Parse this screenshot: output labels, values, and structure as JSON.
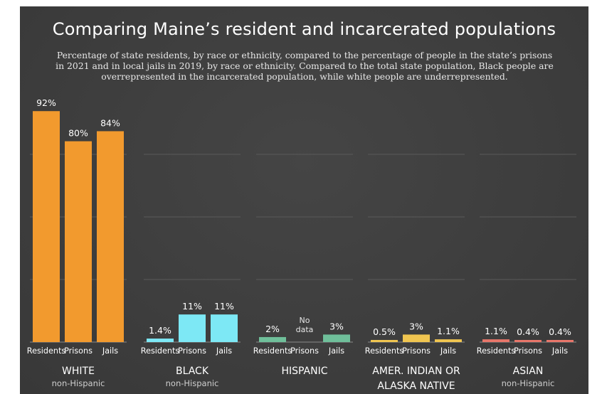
{
  "title": "Comparing Maine’s resident and incarcerated populations",
  "subtitle": "Percentage of state residents, by race or ethnicity, compared to the percentage of people in the state’s prisons in 2021 and in local jails in 2019, by race or ethnicity. Compared to the total state population, Black people are overrepresented in the incarcerated population, while white people are underrepresented.",
  "chart_data": {
    "type": "bar",
    "title": "Comparing Maine’s resident and incarcerated populations",
    "subtitle": "Percentage of state residents, by race or ethnicity, compared to the percentage of people in the state’s prisons in 2021 and in local jails in 2019, by race or ethnicity. Compared to the total state population, Black people are overrepresented in the incarcerated population, while white people are underrepresented.",
    "ylim": [
      0,
      100
    ],
    "grid": true,
    "bar_categories": [
      "Residents",
      "Prisons",
      "Jails"
    ],
    "groups": [
      {
        "name": "WHITE",
        "sub": "non-Hispanic",
        "color": "#f29a2e",
        "values": [
          92,
          80,
          84
        ],
        "labels": [
          "92%",
          "80%",
          "84%"
        ]
      },
      {
        "name": "BLACK",
        "sub": "non-Hispanic",
        "color": "#7de8f5",
        "values": [
          1.4,
          11,
          11
        ],
        "labels": [
          "1.4%",
          "11%",
          "11%"
        ]
      },
      {
        "name": "HISPANIC",
        "sub": "",
        "color": "#6fbf9a",
        "values": [
          2,
          null,
          3
        ],
        "labels": [
          "2%",
          "No data",
          "3%"
        ]
      },
      {
        "name": "AMER. INDIAN OR ALASKA NATIVE",
        "sub": "",
        "color": "#f0c550",
        "values": [
          0.5,
          3,
          1.1
        ],
        "labels": [
          "0.5%",
          "3%",
          "1.1%"
        ]
      },
      {
        "name": "ASIAN",
        "sub": "non-Hispanic",
        "color": "#e8766a",
        "values": [
          1.1,
          0.4,
          0.4
        ],
        "labels": [
          "1.1%",
          "0.4%",
          "0.4%"
        ]
      }
    ]
  }
}
